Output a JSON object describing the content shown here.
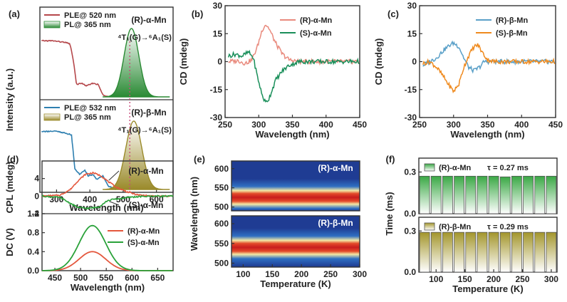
{
  "chart_data": [
    {
      "panel": "(a)",
      "type": "line",
      "title": "",
      "xlabel": "Wavelength (nm)",
      "ylabel": "Intensity (a.u.)",
      "xlim": [
        250,
        650
      ],
      "xticks": [
        "300",
        "400",
        "500",
        "600"
      ],
      "top": {
        "label": "(R)-α-Mn",
        "legend": [
          "PLE@ 520 nm",
          "PL@ 365 nm"
        ],
        "annotation": "⁴T₁(G)→⁶A₁(S)",
        "series": [
          {
            "name": "PLE@ 520 nm",
            "color": "#b5474b",
            "points": [
              [
                255,
                0.82
              ],
              [
                290,
                0.82
              ],
              [
                320,
                0.8
              ],
              [
                340,
                0.78
              ],
              [
                350,
                0.55
              ],
              [
                360,
                0.18
              ],
              [
                375,
                0.2
              ],
              [
                390,
                0.16
              ],
              [
                410,
                0.2
              ],
              [
                425,
                0.18
              ],
              [
                440,
                0.02
              ],
              [
                480,
                0.0
              ]
            ]
          },
          {
            "name": "PL@ 365 nm",
            "color": "#2a8a34",
            "peak": 525,
            "width": 22
          }
        ]
      },
      "bottom": {
        "label": "(R)-β-Mn",
        "legend": [
          "PLE@ 532 nm",
          "PL@ 365 nm"
        ],
        "annotation": "⁴T₁(G)→⁶A₁(S)",
        "series": [
          {
            "name": "PLE@ 532 nm",
            "color": "#2e7fb0",
            "points": [
              [
                255,
                0.85
              ],
              [
                300,
                0.85
              ],
              [
                330,
                0.82
              ],
              [
                345,
                0.8
              ],
              [
                355,
                0.3
              ],
              [
                370,
                0.22
              ],
              [
                385,
                0.28
              ],
              [
                395,
                0.2
              ],
              [
                410,
                0.22
              ],
              [
                420,
                0.15
              ],
              [
                440,
                0.2
              ],
              [
                455,
                0.05
              ],
              [
                480,
                0.0
              ]
            ]
          },
          {
            "name": "PL@ 365 nm",
            "color": "#9a8a2a",
            "peak": 532,
            "width": 24
          }
        ]
      },
      "guide_line_nm": 520
    },
    {
      "panel": "(b)",
      "type": "line",
      "xlabel": "Wavelength (nm)",
      "ylabel": "CD (mdeg)",
      "xlim": [
        250,
        450
      ],
      "ylim": [
        -30,
        30
      ],
      "xticks": [
        "250",
        "300",
        "350",
        "400",
        "450"
      ],
      "yticks": [
        "-30",
        "-15",
        "0",
        "15",
        "30"
      ],
      "series": [
        {
          "name": "(R)-α-Mn",
          "color": "#e98a7d",
          "points": [
            [
              255,
              0
            ],
            [
              270,
              0.5
            ],
            [
              280,
              -1
            ],
            [
              290,
              1
            ],
            [
              298,
              8
            ],
            [
              305,
              17
            ],
            [
              310,
              20
            ],
            [
              315,
              18
            ],
            [
              325,
              10
            ],
            [
              335,
              4
            ],
            [
              345,
              1
            ],
            [
              360,
              0
            ],
            [
              400,
              0
            ],
            [
              450,
              0
            ]
          ]
        },
        {
          "name": "(S)-α-Mn",
          "color": "#1a8f5a",
          "points": [
            [
              255,
              3
            ],
            [
              265,
              4
            ],
            [
              275,
              3
            ],
            [
              285,
              5
            ],
            [
              292,
              2
            ],
            [
              298,
              -8
            ],
            [
              305,
              -18
            ],
            [
              310,
              -22
            ],
            [
              315,
              -20
            ],
            [
              325,
              -10
            ],
            [
              335,
              -5
            ],
            [
              345,
              -2
            ],
            [
              360,
              0
            ],
            [
              400,
              0
            ],
            [
              450,
              0
            ]
          ]
        }
      ]
    },
    {
      "panel": "(c)",
      "type": "line",
      "xlabel": "Wavelength (nm)",
      "ylabel": "CD (mdeg)",
      "xlim": [
        250,
        450
      ],
      "ylim": [
        -30,
        30
      ],
      "xticks": [
        "250",
        "300",
        "350",
        "400",
        "450"
      ],
      "yticks": [
        "-30",
        "-15",
        "0",
        "15",
        "30"
      ],
      "series": [
        {
          "name": "(R)-β-Mn",
          "color": "#5aa0c8",
          "points": [
            [
              255,
              -2
            ],
            [
              265,
              0
            ],
            [
              275,
              2
            ],
            [
              285,
              6
            ],
            [
              295,
              9
            ],
            [
              300,
              10
            ],
            [
              308,
              8
            ],
            [
              315,
              2
            ],
            [
              322,
              -3
            ],
            [
              330,
              -5
            ],
            [
              338,
              -3
            ],
            [
              345,
              0
            ],
            [
              360,
              0
            ],
            [
              400,
              0
            ],
            [
              450,
              0
            ]
          ]
        },
        {
          "name": "(S)-β-Mn",
          "color": "#ef8a1e",
          "points": [
            [
              255,
              -1
            ],
            [
              265,
              0
            ],
            [
              275,
              -3
            ],
            [
              285,
              -8
            ],
            [
              292,
              -12
            ],
            [
              300,
              -16
            ],
            [
              308,
              -12
            ],
            [
              315,
              -3
            ],
            [
              322,
              3
            ],
            [
              330,
              8
            ],
            [
              336,
              9
            ],
            [
              342,
              5
            ],
            [
              350,
              1
            ],
            [
              360,
              0
            ],
            [
              400,
              0
            ],
            [
              450,
              0
            ]
          ]
        }
      ]
    },
    {
      "panel": "(d)",
      "type": "line",
      "xlabel": "Wavelength (nm)",
      "xlim": [
        425,
        680
      ],
      "xticks": [
        "450",
        "500",
        "550",
        "600",
        "650"
      ],
      "top": {
        "ylabel": "CPL (mdeg)",
        "ylim": [
          -4,
          8
        ],
        "yticks": [
          "-4",
          "0",
          "4"
        ],
        "series": [
          {
            "name": "(R)-α-Mn",
            "color": "#e4573d",
            "points": [
              [
                425,
                0
              ],
              [
                460,
                0.2
              ],
              [
                480,
                1.5
              ],
              [
                495,
                3.5
              ],
              [
                510,
                5
              ],
              [
                525,
                5.3
              ],
              [
                540,
                4.6
              ],
              [
                555,
                3.2
              ],
              [
                570,
                2
              ],
              [
                590,
                1
              ],
              [
                610,
                0.3
              ],
              [
                640,
                0
              ],
              [
                680,
                0
              ]
            ]
          },
          {
            "name": "(S)-α-Mn",
            "color": "#2aa23a",
            "points": [
              [
                425,
                0
              ],
              [
                460,
                -0.3
              ],
              [
                478,
                -1.5
              ],
              [
                495,
                -2.6
              ],
              [
                515,
                -2.8
              ],
              [
                535,
                -2.5
              ],
              [
                550,
                -1.2
              ],
              [
                560,
                -0.8
              ],
              [
                575,
                -0.6
              ],
              [
                600,
                -0.2
              ],
              [
                640,
                0
              ],
              [
                680,
                0
              ]
            ]
          }
        ],
        "labels": [
          "(R)-α-Mn",
          "(S)-α-Mn"
        ]
      },
      "bottom": {
        "ylabel": "DC (V)",
        "ylim": [
          0,
          1.2
        ],
        "yticks": [
          "0.0",
          "0.4",
          "0.8",
          "1.2"
        ],
        "series": [
          {
            "name": "(R)-α-Mn",
            "color": "#e4573d",
            "peak": 523,
            "height": 0.4,
            "width": 26
          },
          {
            "name": "(S)-α-Mn",
            "color": "#2aa23a",
            "peak": 523,
            "height": 0.95,
            "width": 26
          }
        ]
      }
    },
    {
      "panel": "(e)",
      "type": "heatmap",
      "xlabel": "Temperature (K)",
      "ylabel": "Wavelength (nm)",
      "xlim": [
        80,
        300
      ],
      "xticks": [
        "100",
        "150",
        "200",
        "250",
        "300"
      ],
      "top": {
        "label": "(R)-α-Mn",
        "ylim": [
          490,
          620
        ],
        "yticks": [
          "500",
          "550",
          "600"
        ],
        "peak_nm": 525
      },
      "bottom": {
        "label": "(R)-β-Mn",
        "ylim": [
          490,
          620
        ],
        "yticks": [
          "500",
          "550",
          "600"
        ],
        "peak_nm": 540
      }
    },
    {
      "panel": "(f)",
      "type": "bar",
      "xlabel": "Temperature (K)",
      "ylabel": "Time (ms)",
      "xticks": [
        "100",
        "150",
        "200",
        "250",
        "300"
      ],
      "top": {
        "label": "(R)-α-Mn",
        "tau": "τ = 0.27 ms",
        "ylim": [
          0,
          0.4
        ],
        "yticks": [
          "0.0",
          "0.3"
        ],
        "color": "#3aa845",
        "x": [
          80,
          100,
          120,
          140,
          160,
          180,
          200,
          220,
          240,
          260,
          280,
          300
        ],
        "values": [
          0.27,
          0.27,
          0.27,
          0.27,
          0.27,
          0.27,
          0.27,
          0.265,
          0.27,
          0.27,
          0.27,
          0.27
        ]
      },
      "bottom": {
        "label": "(R)-β-Mn",
        "tau": "τ = 0.29 ms",
        "ylim": [
          0,
          0.4
        ],
        "yticks": [
          "0.0",
          "0.3"
        ],
        "color": "#a3962c",
        "x": [
          80,
          100,
          120,
          140,
          160,
          180,
          200,
          220,
          240,
          260,
          280,
          300
        ],
        "values": [
          0.29,
          0.29,
          0.29,
          0.29,
          0.29,
          0.29,
          0.29,
          0.29,
          0.29,
          0.29,
          0.29,
          0.29
        ]
      }
    }
  ]
}
